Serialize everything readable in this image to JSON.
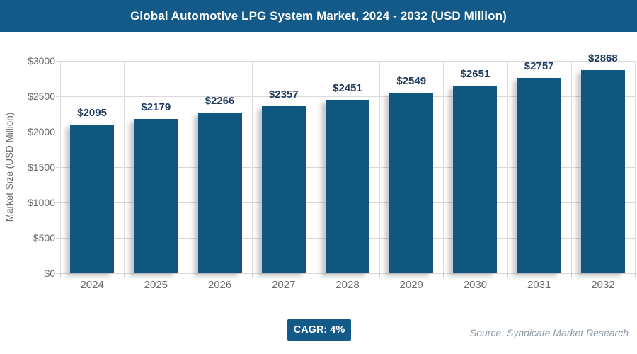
{
  "header": {
    "title": "Global Automotive LPG System Market, 2024 - 2032 (USD Million)"
  },
  "chart_data": {
    "type": "bar",
    "title": "Global Automotive LPG System Market, 2024 - 2032 (USD Million)",
    "categories": [
      "2024",
      "2025",
      "2026",
      "2027",
      "2028",
      "2029",
      "2030",
      "2031",
      "2032"
    ],
    "values": [
      2095,
      2179,
      2266,
      2357,
      2451,
      2549,
      2651,
      2757,
      2868
    ],
    "value_prefix": "$",
    "value_labels": [
      "$2095",
      "$2179",
      "$2266",
      "$2357",
      "$2451",
      "$2549",
      "$2651",
      "$2757",
      "$2868"
    ],
    "xlabel": "",
    "ylabel": "Market Size (USD Million)",
    "ylim": [
      0,
      3000
    ],
    "y_ticks": [
      {
        "value": 0,
        "label": "$0"
      },
      {
        "value": 500,
        "label": "$500"
      },
      {
        "value": 1000,
        "label": "$1000"
      },
      {
        "value": 1500,
        "label": "$1500"
      },
      {
        "value": 2000,
        "label": "$2000"
      },
      {
        "value": 2500,
        "label": "$2500"
      },
      {
        "value": 3000,
        "label": "$3000"
      }
    ],
    "grid": true,
    "legend": "none"
  },
  "colors": {
    "header_bg": "#135a88",
    "bar_fill": "#105780",
    "value_label": "#1f3a5f",
    "axis_text": "#6b6b6b",
    "gridline": "#d9d9d9",
    "cagr_bg": "#135a88",
    "source_text": "#8c99a5"
  },
  "footer": {
    "cagr_label": "CAGR: 4%",
    "source": "Source: Syndicate Market Research"
  }
}
